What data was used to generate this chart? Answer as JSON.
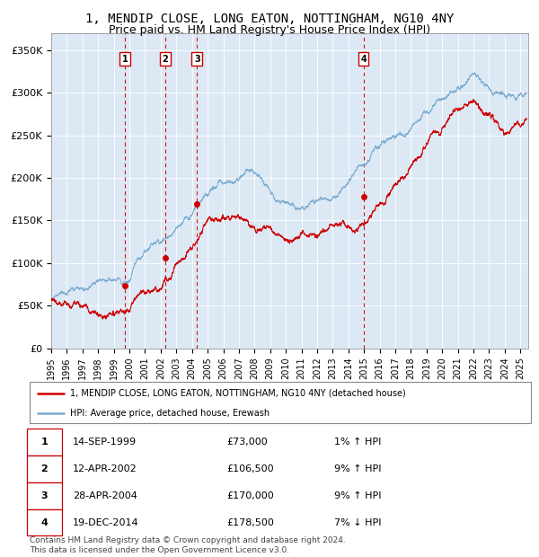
{
  "title": "1, MENDIP CLOSE, LONG EATON, NOTTINGHAM, NG10 4NY",
  "subtitle": "Price paid vs. HM Land Registry's House Price Index (HPI)",
  "ylim": [
    0,
    370000
  ],
  "xlim_start": 1995.0,
  "xlim_end": 2025.5,
  "yticks": [
    0,
    50000,
    100000,
    150000,
    200000,
    250000,
    300000,
    350000
  ],
  "ytick_labels": [
    "£0",
    "£50K",
    "£100K",
    "£150K",
    "£200K",
    "£250K",
    "£300K",
    "£350K"
  ],
  "bg_color": "#dce9f5",
  "red_line_color": "#cc0000",
  "blue_line_color": "#7aabcf",
  "sale_dates": [
    1999.71,
    2002.28,
    2004.32,
    2014.97
  ],
  "sale_prices": [
    73000,
    106500,
    170000,
    178500
  ],
  "sale_labels": [
    "1",
    "2",
    "3",
    "4"
  ],
  "vline_color": "#cc0000",
  "marker_color": "#cc0000",
  "legend_red_label": "1, MENDIP CLOSE, LONG EATON, NOTTINGHAM, NG10 4NY (detached house)",
  "legend_blue_label": "HPI: Average price, detached house, Erewash",
  "table_data": [
    [
      "1",
      "14-SEP-1999",
      "£73,000",
      "1% ↑ HPI"
    ],
    [
      "2",
      "12-APR-2002",
      "£106,500",
      "9% ↑ HPI"
    ],
    [
      "3",
      "28-APR-2004",
      "£170,000",
      "9% ↑ HPI"
    ],
    [
      "4",
      "19-DEC-2014",
      "£178,500",
      "7% ↓ HPI"
    ]
  ],
  "footnote": "Contains HM Land Registry data © Crown copyright and database right 2024.\nThis data is licensed under the Open Government Licence v3.0.",
  "title_fontsize": 10,
  "subtitle_fontsize": 9
}
